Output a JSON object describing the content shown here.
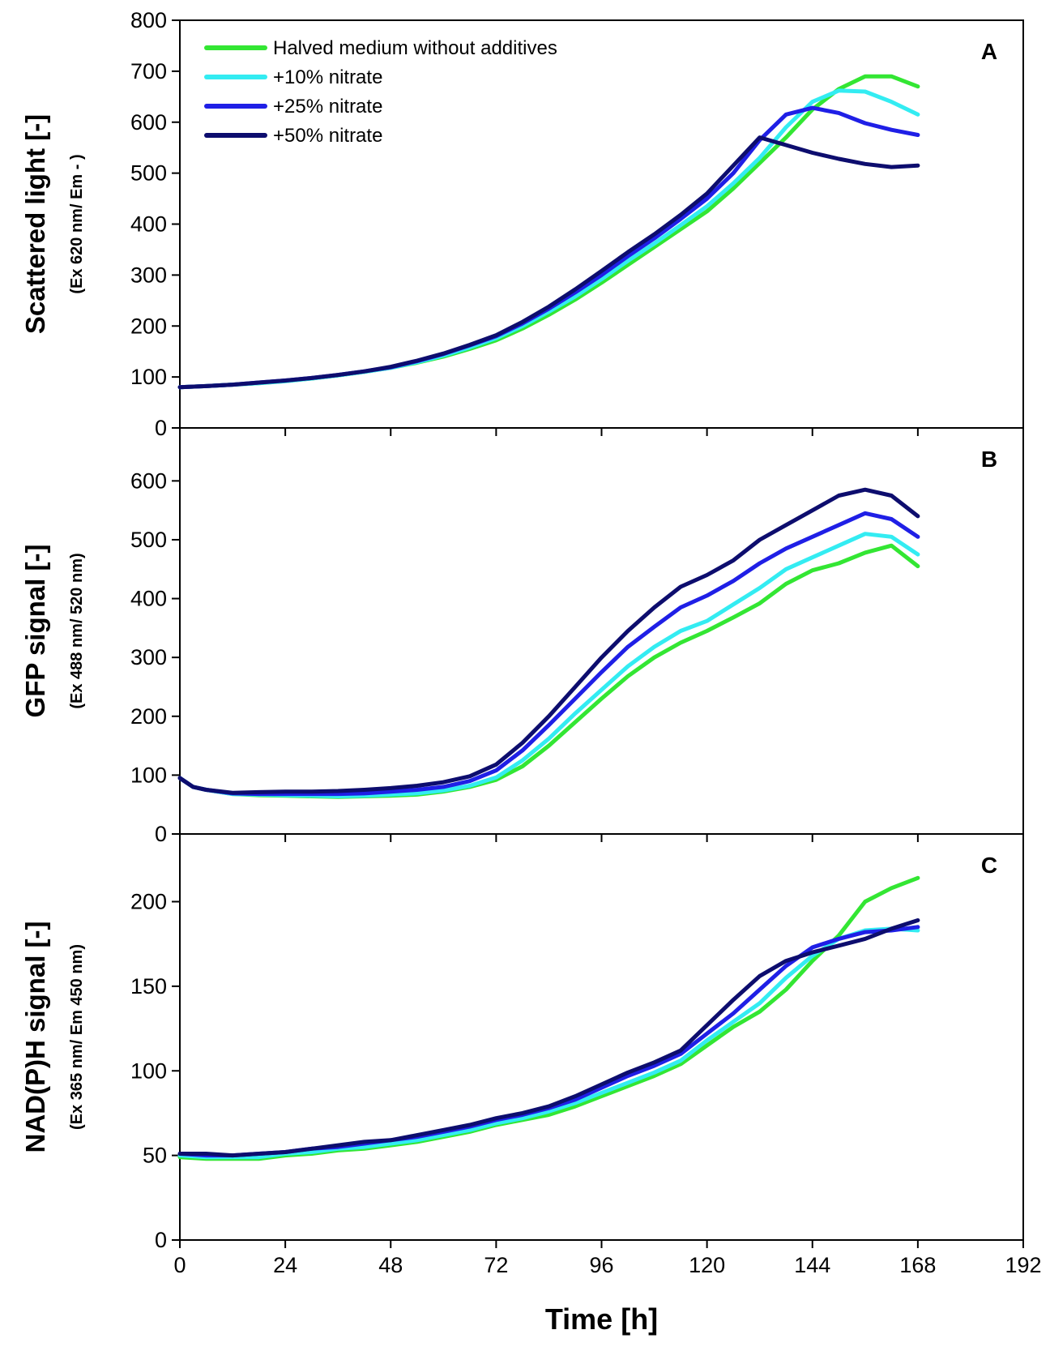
{
  "figure": {
    "xlabel": "Time   [h]"
  },
  "colors": {
    "Halved medium without additives": "#33e633",
    "+10% nitrate": "#33ecf2",
    "+25% nitrate": "#1f1fe6",
    "+50% nitrate": "#0d0d6e"
  },
  "chart_data": [
    {
      "type": "line",
      "panel": "A",
      "ylabel": "Scattered light   [-]",
      "ylabel_sub": "(Ex 620 nm/ Em - )",
      "xlim": [
        0,
        192
      ],
      "ylim": [
        0,
        800
      ],
      "xticks": [
        0,
        24,
        48,
        72,
        96,
        120,
        144,
        168,
        192
      ],
      "yticks": [
        0,
        100,
        200,
        300,
        400,
        500,
        600,
        700,
        800
      ],
      "legend": "top-left",
      "x": [
        0,
        6,
        12,
        18,
        24,
        30,
        36,
        42,
        48,
        54,
        60,
        66,
        72,
        78,
        84,
        90,
        96,
        102,
        108,
        114,
        120,
        126,
        132,
        138,
        144,
        150,
        156,
        162,
        168
      ],
      "series": [
        {
          "name": "Halved medium without additives",
          "values": [
            80,
            82,
            85,
            88,
            92,
            97,
            103,
            110,
            118,
            128,
            140,
            155,
            172,
            195,
            222,
            252,
            285,
            320,
            355,
            390,
            425,
            470,
            520,
            570,
            625,
            665,
            690,
            690,
            670
          ]
        },
        {
          "name": "+10% nitrate",
          "values": [
            80,
            82,
            85,
            88,
            92,
            97,
            103,
            110,
            118,
            129,
            142,
            158,
            176,
            200,
            228,
            258,
            292,
            328,
            362,
            398,
            435,
            480,
            530,
            590,
            640,
            662,
            660,
            640,
            615
          ]
        },
        {
          "name": "+25% nitrate",
          "values": [
            80,
            82,
            85,
            89,
            93,
            98,
            104,
            111,
            119,
            131,
            145,
            162,
            180,
            205,
            234,
            266,
            300,
            337,
            372,
            410,
            450,
            500,
            565,
            615,
            628,
            618,
            598,
            585,
            575
          ]
        },
        {
          "name": "+50% nitrate",
          "values": [
            80,
            82,
            85,
            89,
            93,
            98,
            104,
            111,
            120,
            132,
            146,
            163,
            182,
            208,
            238,
            272,
            308,
            345,
            380,
            418,
            460,
            515,
            570,
            555,
            540,
            528,
            518,
            512,
            515
          ]
        }
      ]
    },
    {
      "type": "line",
      "panel": "B",
      "ylabel": "GFP signal   [-]",
      "ylabel_sub": "(Ex 488 nm/ 520 nm)",
      "xlim": [
        0,
        192
      ],
      "ylim": [
        0,
        690
      ],
      "xticks": [
        0,
        24,
        48,
        72,
        96,
        120,
        144,
        168,
        192
      ],
      "yticks": [
        0,
        100,
        200,
        300,
        400,
        500,
        600
      ],
      "x": [
        0,
        3,
        6,
        12,
        18,
        24,
        30,
        36,
        42,
        48,
        54,
        60,
        66,
        72,
        78,
        84,
        90,
        96,
        102,
        108,
        114,
        120,
        126,
        132,
        138,
        144,
        150,
        156,
        162,
        168
      ],
      "series": [
        {
          "name": "Halved medium without additives",
          "values": [
            95,
            80,
            75,
            68,
            66,
            65,
            64,
            63,
            64,
            65,
            67,
            72,
            80,
            92,
            115,
            150,
            190,
            230,
            268,
            300,
            325,
            345,
            368,
            392,
            425,
            448,
            460,
            478,
            490,
            455
          ]
        },
        {
          "name": "+10% nitrate",
          "values": [
            95,
            80,
            75,
            68,
            67,
            66,
            65,
            64,
            65,
            67,
            69,
            74,
            82,
            96,
            125,
            162,
            205,
            245,
            285,
            318,
            345,
            362,
            390,
            418,
            450,
            470,
            490,
            510,
            505,
            475
          ]
        },
        {
          "name": "+25% nitrate",
          "values": [
            95,
            80,
            75,
            69,
            68,
            68,
            68,
            68,
            69,
            72,
            75,
            80,
            90,
            108,
            142,
            185,
            230,
            275,
            318,
            352,
            385,
            405,
            430,
            460,
            485,
            505,
            525,
            545,
            535,
            505
          ]
        },
        {
          "name": "+50% nitrate",
          "values": [
            95,
            80,
            75,
            70,
            71,
            72,
            72,
            73,
            75,
            78,
            82,
            88,
            98,
            118,
            155,
            200,
            250,
            300,
            345,
            385,
            420,
            440,
            465,
            500,
            525,
            550,
            575,
            585,
            575,
            540
          ]
        }
      ]
    },
    {
      "type": "line",
      "panel": "C",
      "ylabel": "NAD(P)H signal   [-]",
      "ylabel_sub": "(Ex 365 nm/ Em 450 nm)",
      "xlim": [
        0,
        192
      ],
      "ylim": [
        0,
        240
      ],
      "xticks": [
        0,
        24,
        48,
        72,
        96,
        120,
        144,
        168,
        192
      ],
      "yticks": [
        0,
        50,
        100,
        150,
        200
      ],
      "x": [
        0,
        6,
        12,
        18,
        24,
        30,
        36,
        42,
        48,
        54,
        60,
        66,
        72,
        78,
        84,
        90,
        96,
        102,
        108,
        114,
        120,
        126,
        132,
        138,
        144,
        150,
        156,
        162,
        168
      ],
      "series": [
        {
          "name": "Halved medium without additives",
          "values": [
            49,
            48,
            48,
            48,
            50,
            51,
            53,
            54,
            56,
            58,
            61,
            64,
            68,
            71,
            74,
            79,
            85,
            91,
            97,
            104,
            115,
            126,
            135,
            148,
            165,
            180,
            200,
            208,
            214
          ]
        },
        {
          "name": "+10% nitrate",
          "values": [
            50,
            49,
            49,
            49,
            51,
            52,
            54,
            55,
            57,
            59,
            62,
            65,
            69,
            72,
            76,
            81,
            87,
            93,
            99,
            106,
            118,
            129,
            140,
            155,
            168,
            178,
            183,
            184,
            183
          ]
        },
        {
          "name": "+25% nitrate",
          "values": [
            51,
            50,
            50,
            51,
            52,
            54,
            55,
            57,
            59,
            61,
            64,
            67,
            71,
            74,
            78,
            83,
            90,
            97,
            103,
            110,
            122,
            134,
            148,
            162,
            173,
            178,
            182,
            183,
            185
          ]
        },
        {
          "name": "+50% nitrate",
          "values": [
            51,
            51,
            50,
            51,
            52,
            54,
            56,
            58,
            59,
            62,
            65,
            68,
            72,
            75,
            79,
            85,
            92,
            99,
            105,
            112,
            127,
            142,
            156,
            165,
            170,
            174,
            178,
            184,
            189
          ]
        }
      ]
    }
  ]
}
